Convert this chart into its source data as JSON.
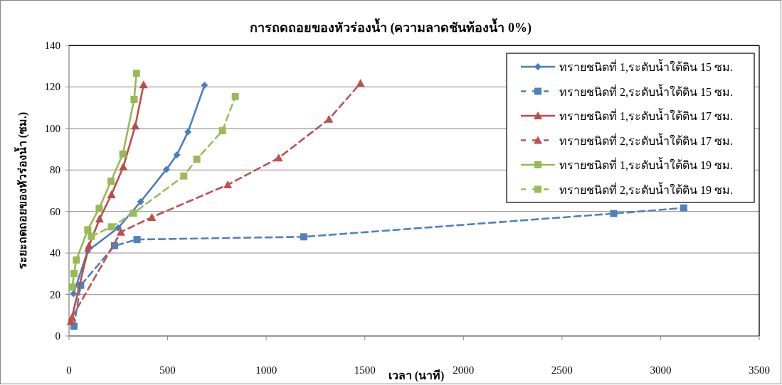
{
  "chart_data": {
    "type": "line",
    "title": "การถดถอยของหัวร่องน้ำ (ความลาดชันท้องน้ำ 0%)",
    "xlabel": "เวลา (นาที)",
    "ylabel": "ระยะถดถอยของหัวร่องน้ำ  (ซม.)",
    "xlim": [
      0,
      3500
    ],
    "xticks": [
      0,
      500,
      1000,
      1500,
      2000,
      2500,
      3000,
      3500
    ],
    "ylim": [
      0,
      140
    ],
    "yticks": [
      0,
      20,
      40,
      60,
      80,
      100,
      120,
      140
    ],
    "grid": "y",
    "legend": "top right",
    "series": [
      {
        "name": "ทรายชนิดที่ 1,ระดับน้ำใต้ดิน 15 ซม.",
        "color": "#4a7ebb",
        "marker": "diamond",
        "line_style": "solid",
        "x": [
          23,
          95,
          249,
          363,
          494,
          547,
          603,
          687
        ],
        "values": [
          20.4,
          41,
          52.1,
          64.7,
          80.3,
          87.3,
          98.3,
          120.8
        ]
      },
      {
        "name": "ทรายชนิดที่ 2,ระดับน้ำใต้ดิน 15 ซม.",
        "color": "#4f81bd",
        "marker": "square",
        "line_style": "dashed",
        "x": [
          25,
          59,
          231,
          345,
          1190,
          2762,
          3117
        ],
        "values": [
          4.7,
          24.4,
          43.5,
          46.5,
          47.8,
          59,
          61.7
        ]
      },
      {
        "name": "ทรายชนิดที่ 1,ระดับน้ำใต้ดิน 17 ซม.",
        "color": "#be4b48",
        "marker": "triangle",
        "line_style": "solid",
        "x": [
          10,
          101,
          155,
          215,
          275,
          336,
          378
        ],
        "values": [
          7,
          43.5,
          56.4,
          68.1,
          81.5,
          101.2,
          121.1
        ]
      },
      {
        "name": "ทรายชนิดที่ 2,ระดับน้ำใต้ดิน 17 ซม.",
        "color": "#c0504d",
        "marker": "triangle",
        "line_style": "dashed",
        "x": [
          15,
          263,
          420,
          805,
          1063,
          1318,
          1478
        ],
        "values": [
          9,
          50.1,
          57.2,
          72.9,
          85.8,
          104.5,
          121.8
        ]
      },
      {
        "name": "ทรายชนิดที่ 1,ระดับน้ำใต้ดิน 19 ซม.",
        "color": "#98b954",
        "marker": "square",
        "line_style": "solid",
        "x": [
          17,
          25,
          37,
          95,
          153,
          213,
          273,
          330,
          342
        ],
        "values": [
          23.6,
          30.1,
          36.6,
          51.2,
          61.5,
          74.6,
          87.7,
          114,
          126.6
        ]
      },
      {
        "name": "ทรายชนิดที่ 2,ระดับน้ำใต้ดิน 19 ซม.",
        "color": "#9bbb59",
        "marker": "square",
        "line_style": "dashed",
        "x": [
          113,
          215,
          327,
          582,
          648,
          778,
          843
        ],
        "values": [
          48,
          52.6,
          59.2,
          77.1,
          85.2,
          98.9,
          115.4
        ]
      }
    ]
  }
}
